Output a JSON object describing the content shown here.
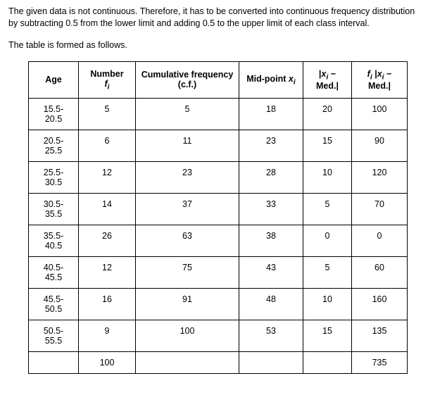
{
  "paragraph1": "The given data is not continuous. Therefore, it has to be converted into continuous frequency distribution by subtracting 0.5 from the lower limit and adding 0.5 to the upper limit of each class interval.",
  "paragraph2": "The table is formed as follows.",
  "table": {
    "headers": {
      "age": "Age",
      "number_label": "Number",
      "number_symbol_f": "f",
      "number_symbol_i": "i",
      "cf": "Cumulative frequency (c.f.)",
      "mid_label": "Mid-point ",
      "mid_x": "x",
      "mid_i": "i",
      "dev_bar": "|",
      "dev_x": "x",
      "dev_i": "i",
      "dev_minus": " − Med.|",
      "fdev_f": "f",
      "fdev_i1": "i",
      "fdev_sp": " |",
      "fdev_x": "x",
      "fdev_i2": "i",
      "fdev_minus": " − Med.|"
    },
    "rows": [
      {
        "age1": "15.5-",
        "age2": "20.5",
        "fi": "5",
        "cf": "5",
        "xi": "18",
        "dev": "20",
        "fdev": "100"
      },
      {
        "age1": "20.5-",
        "age2": "25.5",
        "fi": "6",
        "cf": "11",
        "xi": "23",
        "dev": "15",
        "fdev": "90"
      },
      {
        "age1": "25.5-",
        "age2": "30.5",
        "fi": "12",
        "cf": "23",
        "xi": "28",
        "dev": "10",
        "fdev": "120"
      },
      {
        "age1": "30.5-",
        "age2": "35.5",
        "fi": "14",
        "cf": "37",
        "xi": "33",
        "dev": "5",
        "fdev": "70"
      },
      {
        "age1": "35.5-",
        "age2": "40.5",
        "fi": "26",
        "cf": "63",
        "xi": "38",
        "dev": "0",
        "fdev": "0"
      },
      {
        "age1": "40.5-",
        "age2": "45.5",
        "fi": "12",
        "cf": "75",
        "xi": "43",
        "dev": "5",
        "fdev": "60"
      },
      {
        "age1": "45.5-",
        "age2": "50.5",
        "fi": "16",
        "cf": "91",
        "xi": "48",
        "dev": "10",
        "fdev": "160"
      },
      {
        "age1": "50.5-",
        "age2": "55.5",
        "fi": "9",
        "cf": "100",
        "xi": "53",
        "dev": "15",
        "fdev": "135"
      }
    ],
    "totals": {
      "fi": "100",
      "fdev": "735"
    }
  }
}
